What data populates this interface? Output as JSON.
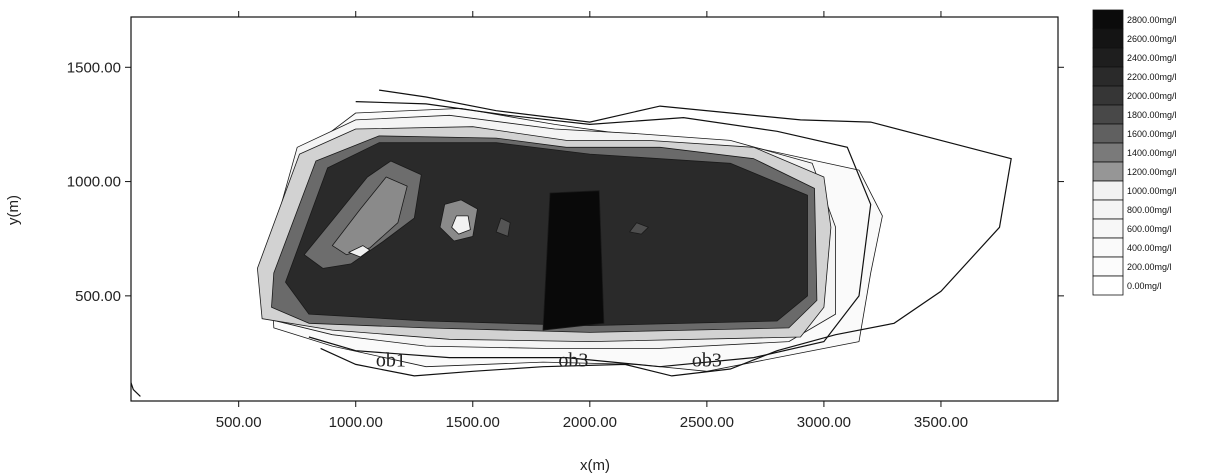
{
  "chart_data": {
    "type": "heatmap",
    "xlabel": "x(m)",
    "ylabel": "y(m)",
    "xlim": [
      40,
      4000
    ],
    "ylim": [
      40,
      1720
    ],
    "x_ticks": [
      "500.00",
      "1000.00",
      "1500.00",
      "2000.00",
      "2500.00",
      "3000.00",
      "3500.00"
    ],
    "x_tick_values": [
      500,
      1000,
      1500,
      2000,
      2500,
      3000,
      3500
    ],
    "y_ticks": [
      "500.00",
      "1000.00",
      "1500.00"
    ],
    "y_tick_values": [
      500,
      1000,
      1500
    ],
    "legend": {
      "placement": "right",
      "labels": [
        "2800.00mg/l",
        "2600.00mg/l",
        "2400.00mg/l",
        "2200.00mg/l",
        "2000.00mg/l",
        "1800.00mg/l",
        "1600.00mg/l",
        "1400.00mg/l",
        "1200.00mg/l",
        "1000.00mg/l",
        "800.00mg/l",
        "600.00mg/l",
        "400.00mg/l",
        "200.00mg/l",
        "0.00mg/l"
      ],
      "colors": [
        "#0b0b0b",
        "#141414",
        "#1e1e1e",
        "#2a2a2a",
        "#363636",
        "#484848",
        "#606060",
        "#7a7a7a",
        "#969696",
        "#f2f2f2",
        "#f4f4f4",
        "#f7f7f7",
        "#fafafa",
        "#fcfcfc",
        "#ffffff"
      ]
    },
    "annotations": [
      {
        "text": "ob1",
        "x": 1150,
        "y": 190
      },
      {
        "text": "ob3",
        "x": 1930,
        "y": 190
      },
      {
        "text": "ob3",
        "x": 2500,
        "y": 190
      }
    ],
    "regions": [
      {
        "level": 200,
        "color": "#fafafa",
        "points": [
          [
            640,
            580
          ],
          [
            780,
            1130
          ],
          [
            1000,
            1300
          ],
          [
            1450,
            1320
          ],
          [
            1850,
            1250
          ],
          [
            2200,
            1200
          ],
          [
            2700,
            1150
          ],
          [
            3150,
            1050
          ],
          [
            3250,
            850
          ],
          [
            3200,
            600
          ],
          [
            3150,
            300
          ],
          [
            2900,
            250
          ],
          [
            2500,
            170
          ],
          [
            2200,
            200
          ],
          [
            1800,
            210
          ],
          [
            1300,
            190
          ],
          [
            900,
            280
          ],
          [
            650,
            360
          ]
        ]
      },
      {
        "level": 600,
        "color": "#f4f4f4",
        "points": [
          [
            600,
            600
          ],
          [
            750,
            1150
          ],
          [
            1000,
            1270
          ],
          [
            1400,
            1290
          ],
          [
            1850,
            1230
          ],
          [
            2200,
            1210
          ],
          [
            2600,
            1180
          ],
          [
            2950,
            1080
          ],
          [
            3050,
            800
          ],
          [
            3050,
            420
          ],
          [
            2850,
            300
          ],
          [
            2300,
            270
          ],
          [
            1800,
            270
          ],
          [
            1300,
            280
          ],
          [
            900,
            330
          ],
          [
            620,
            400
          ]
        ]
      },
      {
        "level": 1000,
        "color": "#d2d2d2",
        "points": [
          [
            580,
            620
          ],
          [
            760,
            1120
          ],
          [
            1000,
            1230
          ],
          [
            1500,
            1240
          ],
          [
            1900,
            1180
          ],
          [
            2250,
            1180
          ],
          [
            2700,
            1150
          ],
          [
            3000,
            1020
          ],
          [
            3030,
            800
          ],
          [
            3000,
            450
          ],
          [
            2900,
            320
          ],
          [
            2000,
            300
          ],
          [
            1400,
            310
          ],
          [
            900,
            350
          ],
          [
            600,
            400
          ]
        ]
      },
      {
        "level": 1600,
        "color": "#6a6a6a",
        "points": [
          [
            650,
            600
          ],
          [
            830,
            1090
          ],
          [
            1100,
            1200
          ],
          [
            1600,
            1190
          ],
          [
            1900,
            1150
          ],
          [
            2300,
            1150
          ],
          [
            2700,
            1100
          ],
          [
            2960,
            970
          ],
          [
            2970,
            480
          ],
          [
            2850,
            360
          ],
          [
            2000,
            340
          ],
          [
            1300,
            360
          ],
          [
            800,
            380
          ],
          [
            640,
            450
          ]
        ]
      },
      {
        "level": 2200,
        "color": "#2a2a2a",
        "points": [
          [
            700,
            560
          ],
          [
            880,
            1060
          ],
          [
            1100,
            1170
          ],
          [
            1600,
            1170
          ],
          [
            2000,
            1120
          ],
          [
            2600,
            1080
          ],
          [
            2930,
            940
          ],
          [
            2930,
            500
          ],
          [
            2800,
            390
          ],
          [
            2000,
            370
          ],
          [
            1300,
            390
          ],
          [
            800,
            420
          ]
        ]
      },
      {
        "level": 1600,
        "color": "#6d6d6d",
        "points": [
          [
            780,
            680
          ],
          [
            900,
            830
          ],
          [
            1050,
            1020
          ],
          [
            1150,
            1090
          ],
          [
            1280,
            1030
          ],
          [
            1250,
            840
          ],
          [
            1120,
            740
          ],
          [
            980,
            640
          ],
          [
            860,
            620
          ]
        ]
      },
      {
        "level": 1400,
        "color": "#8a8a8a",
        "points": [
          [
            900,
            720
          ],
          [
            1020,
            880
          ],
          [
            1130,
            1020
          ],
          [
            1220,
            980
          ],
          [
            1180,
            820
          ],
          [
            1060,
            710
          ],
          [
            960,
            680
          ]
        ]
      },
      {
        "level": 1000,
        "color": "#f0f0f0",
        "points": [
          [
            970,
            690
          ],
          [
            1030,
            720
          ],
          [
            1060,
            700
          ],
          [
            1020,
            670
          ]
        ]
      },
      {
        "level": 1400,
        "color": "#8a8a8a",
        "points": [
          [
            1360,
            800
          ],
          [
            1380,
            900
          ],
          [
            1450,
            920
          ],
          [
            1520,
            880
          ],
          [
            1500,
            760
          ],
          [
            1420,
            740
          ]
        ]
      },
      {
        "level": 1000,
        "color": "#f2f2f2",
        "points": [
          [
            1410,
            800
          ],
          [
            1430,
            850
          ],
          [
            1480,
            850
          ],
          [
            1490,
            790
          ],
          [
            1440,
            770
          ]
        ]
      },
      {
        "level": 1800,
        "color": "#545454",
        "points": [
          [
            1600,
            780
          ],
          [
            1620,
            840
          ],
          [
            1660,
            820
          ],
          [
            1650,
            760
          ]
        ]
      },
      {
        "level": 2800,
        "color": "#090909",
        "points": [
          [
            1800,
            350
          ],
          [
            1830,
            950
          ],
          [
            2040,
            960
          ],
          [
            2060,
            380
          ]
        ]
      },
      {
        "level": 1800,
        "color": "#4e4e4e",
        "points": [
          [
            2170,
            780
          ],
          [
            2200,
            820
          ],
          [
            2250,
            800
          ],
          [
            2220,
            770
          ]
        ]
      }
    ],
    "contours": [
      {
        "level": 0,
        "points": [
          [
            1100,
            1400
          ],
          [
            1300,
            1370
          ],
          [
            1600,
            1310
          ],
          [
            2000,
            1260
          ],
          [
            2300,
            1330
          ],
          [
            2600,
            1300
          ],
          [
            2900,
            1270
          ],
          [
            3200,
            1260
          ],
          [
            3500,
            1180
          ],
          [
            3800,
            1100
          ],
          [
            3750,
            800
          ],
          [
            3500,
            520
          ],
          [
            3300,
            380
          ],
          [
            3050,
            330
          ],
          [
            2800,
            260
          ],
          [
            2600,
            180
          ],
          [
            2350,
            150
          ],
          [
            2150,
            200
          ],
          [
            1800,
            190
          ],
          [
            1500,
            170
          ],
          [
            1250,
            150
          ],
          [
            1000,
            200
          ],
          [
            850,
            270
          ]
        ]
      },
      {
        "level": 200,
        "points": [
          [
            1000,
            1350
          ],
          [
            1300,
            1340
          ],
          [
            1650,
            1290
          ],
          [
            2000,
            1250
          ],
          [
            2400,
            1280
          ],
          [
            2800,
            1220
          ],
          [
            3100,
            1150
          ],
          [
            3200,
            900
          ],
          [
            3150,
            500
          ],
          [
            3000,
            300
          ],
          [
            2700,
            230
          ],
          [
            2300,
            190
          ],
          [
            1900,
            230
          ],
          [
            1400,
            230
          ],
          [
            1000,
            260
          ],
          [
            800,
            320
          ]
        ]
      },
      {
        "level": 0,
        "points": [
          [
            40,
            120
          ],
          [
            50,
            90
          ],
          [
            80,
            60
          ]
        ]
      }
    ]
  }
}
